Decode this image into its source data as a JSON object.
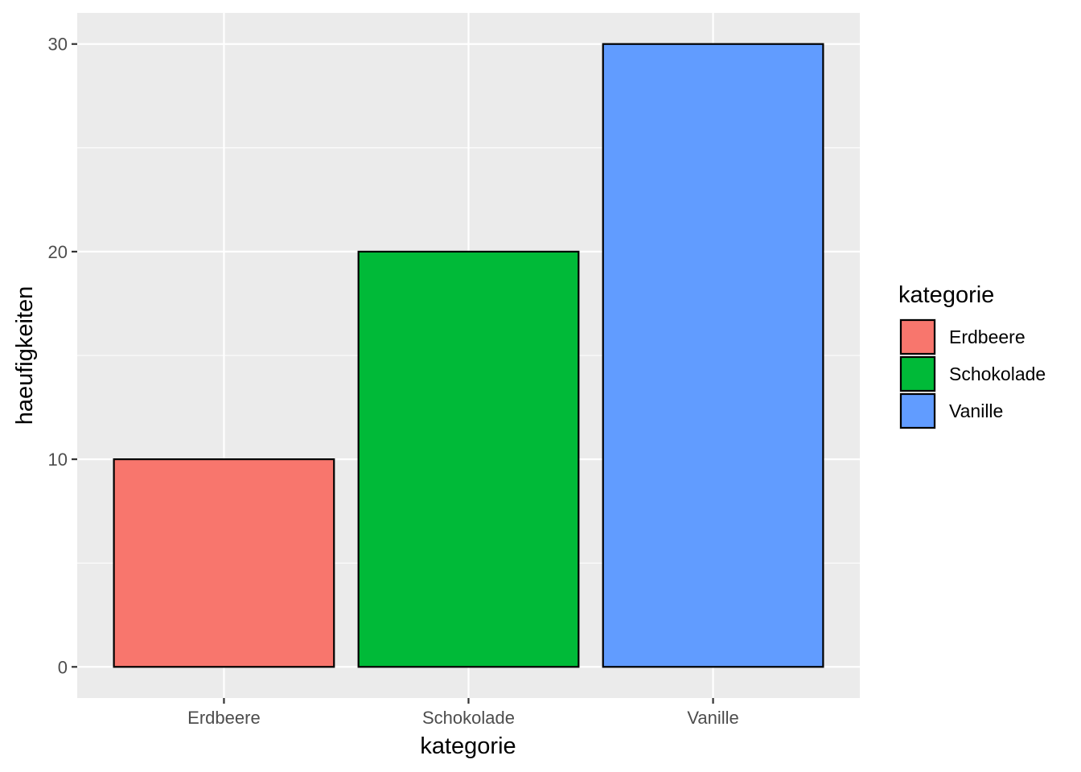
{
  "chart_data": {
    "type": "bar",
    "categories": [
      "Erdbeere",
      "Schokolade",
      "Vanille"
    ],
    "values": [
      10,
      20,
      30
    ],
    "colors": [
      "#F8766D",
      "#00BA38",
      "#619CFF"
    ],
    "xlabel": "kategorie",
    "ylabel": "haeufigkeiten",
    "ylim": [
      -1.5,
      31.5
    ],
    "yticks": [
      0,
      10,
      20,
      30
    ],
    "yticklabels": [
      "0",
      "10",
      "20",
      "30"
    ],
    "grid": true,
    "panel_background": "#EBEBEB",
    "grid_color": "#FFFFFF",
    "bar_outline": "#000000",
    "legend": {
      "title": "kategorie",
      "placement": "right",
      "entries": [
        "Erdbeere",
        "Schokolade",
        "Vanille"
      ]
    }
  }
}
